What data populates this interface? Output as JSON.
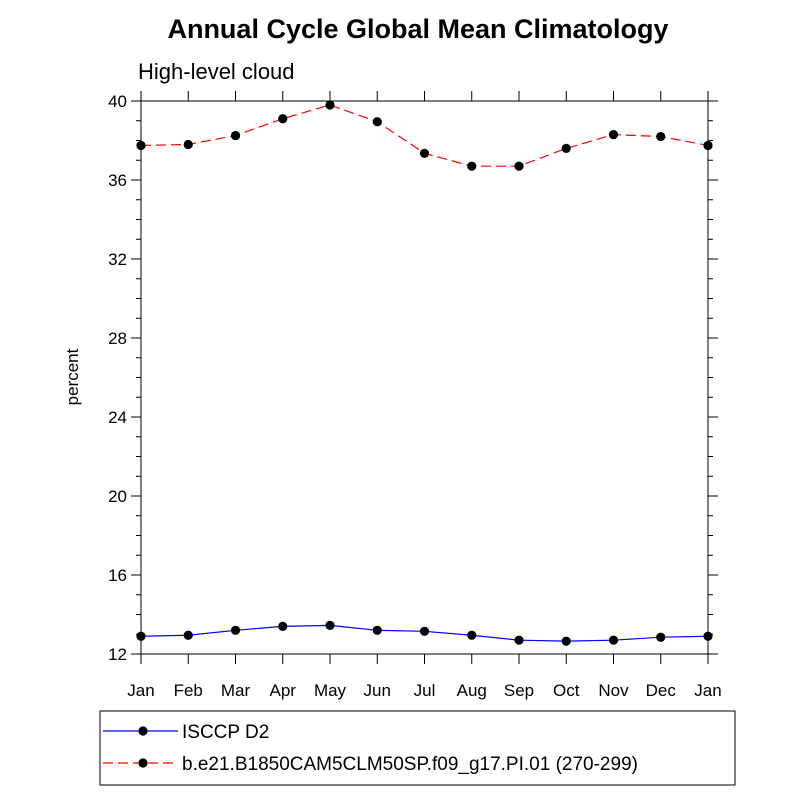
{
  "chart_data": {
    "type": "line",
    "title": "Annual Cycle Global Mean Climatology",
    "subtitle": "High-level cloud",
    "xlabel": "",
    "ylabel": "percent",
    "categories": [
      "Jan",
      "Feb",
      "Mar",
      "Apr",
      "May",
      "Jun",
      "Jul",
      "Aug",
      "Sep",
      "Oct",
      "Nov",
      "Dec",
      "Jan"
    ],
    "ylim": [
      12,
      40
    ],
    "yticks": [
      12,
      16,
      20,
      24,
      28,
      32,
      36,
      40
    ],
    "yminor_step": 1,
    "grid": false,
    "legend_position": "bottom",
    "series": [
      {
        "name": "ISCCP D2",
        "color": "#0000ff",
        "dash": "solid",
        "marker": "circle",
        "values": [
          12.9,
          12.95,
          13.2,
          13.4,
          13.45,
          13.2,
          13.15,
          12.95,
          12.7,
          12.65,
          12.7,
          12.85,
          12.9
        ]
      },
      {
        "name": "b.e21.B1850CAM5CLM50SP.f09_g17.PI.01 (270-299)",
        "color": "#ff0000",
        "dash": "dashed",
        "marker": "circle",
        "values": [
          37.75,
          37.8,
          38.25,
          39.1,
          39.8,
          38.95,
          37.35,
          36.7,
          36.7,
          37.6,
          38.3,
          38.2,
          37.75
        ]
      }
    ]
  }
}
